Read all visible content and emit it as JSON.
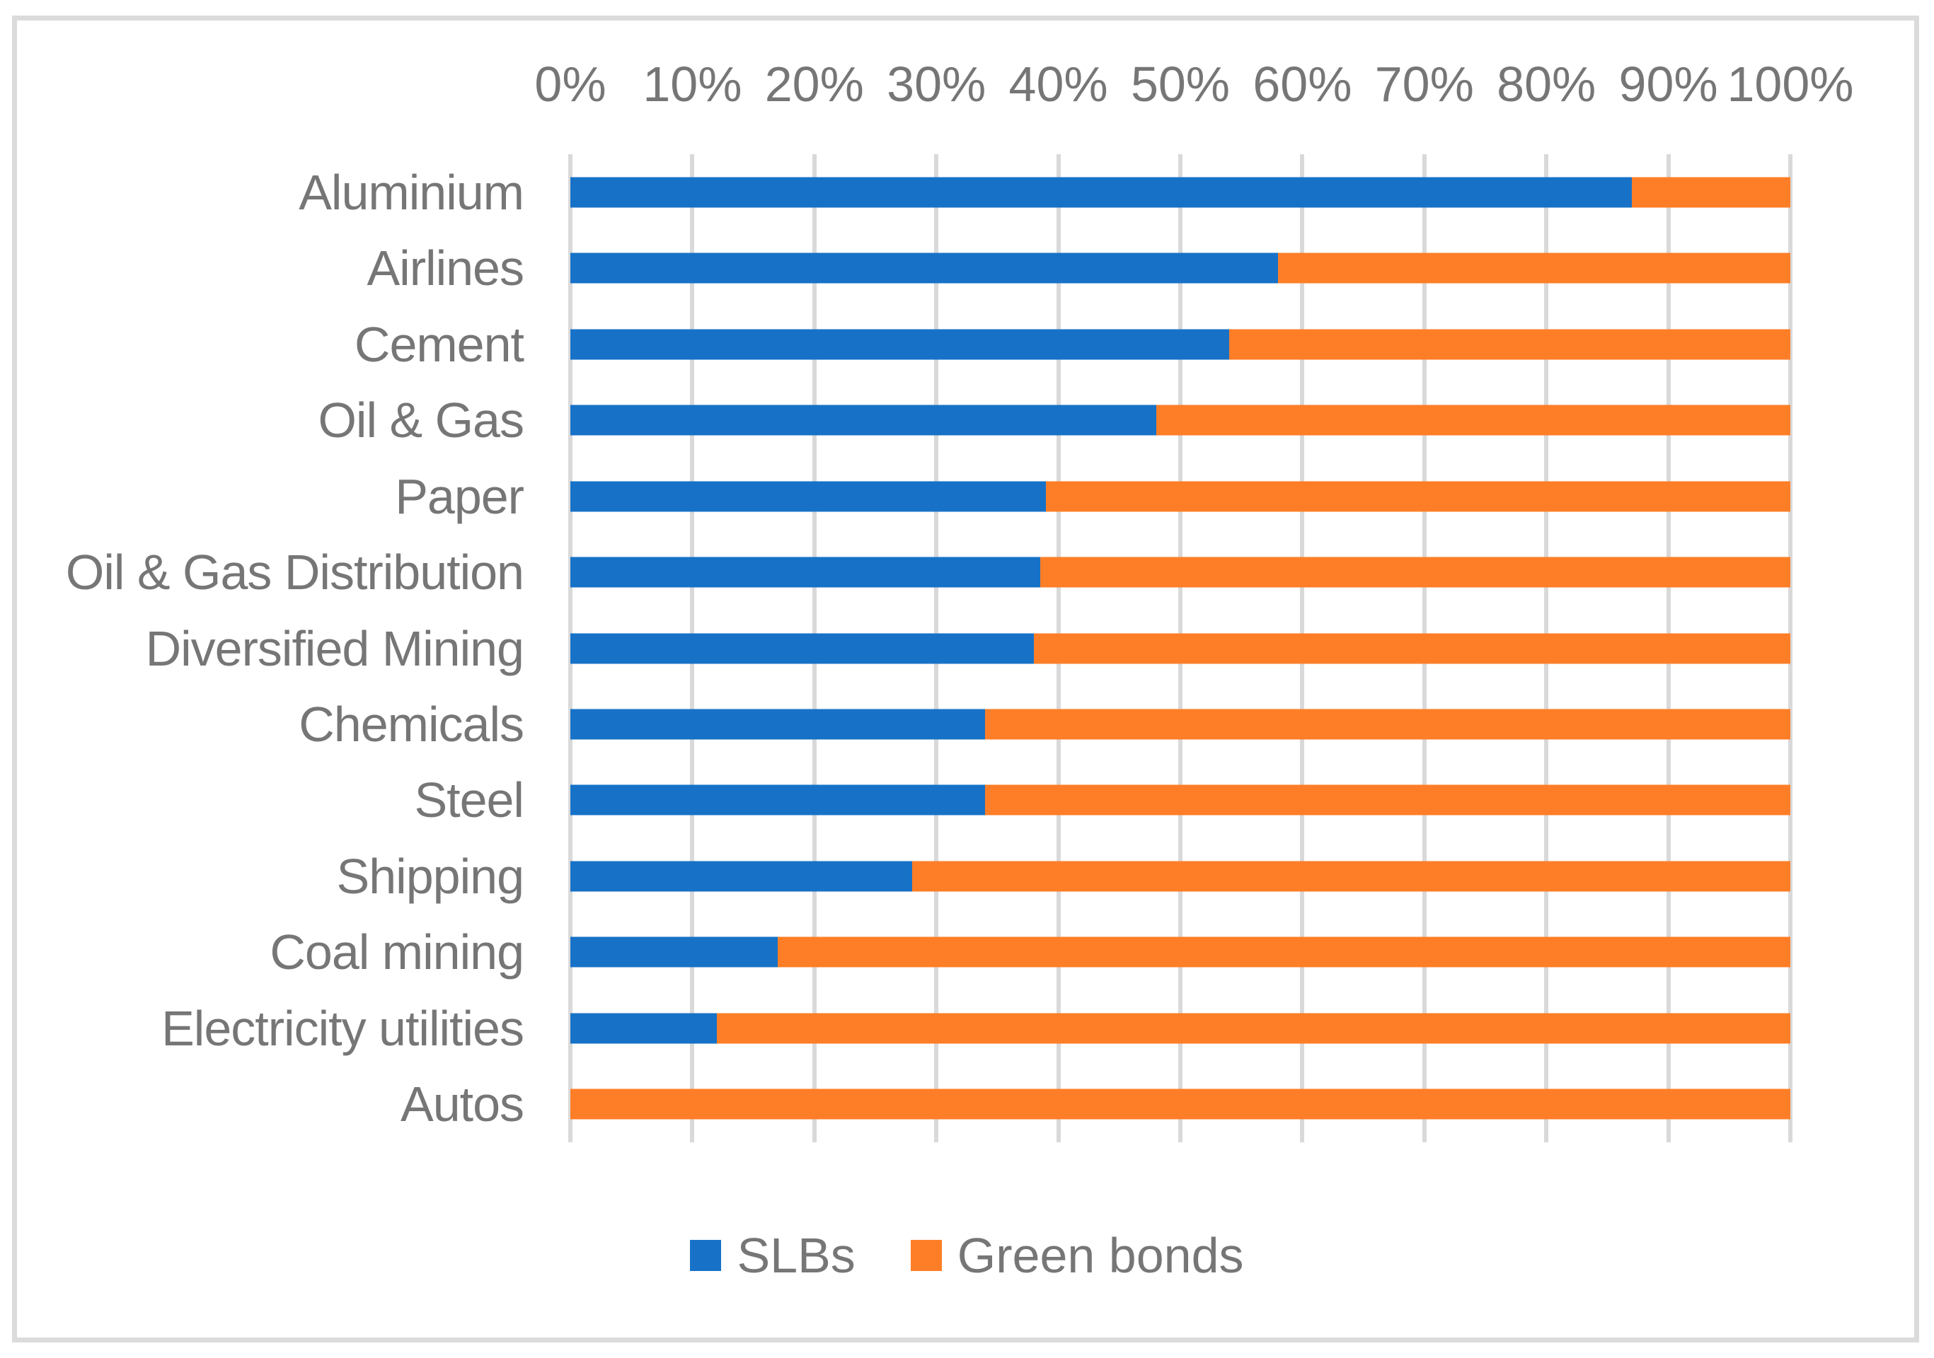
{
  "chart_data": {
    "type": "bar",
    "orientation": "horizontal",
    "stacked": true,
    "title": "",
    "categories": [
      "Aluminium",
      "Airlines",
      "Cement",
      "Oil & Gas",
      "Paper",
      "Oil & Gas Distribution",
      "Diversified Mining",
      "Chemicals",
      "Steel",
      "Shipping",
      "Coal mining",
      "Electricity utilities",
      "Autos"
    ],
    "series": [
      {
        "name": "SLBs",
        "color": "#1772c7",
        "values": [
          87,
          58,
          54,
          48,
          39,
          38.5,
          38,
          34,
          34,
          28,
          17,
          12,
          0
        ]
      },
      {
        "name": "Green bonds",
        "color": "#fe7e27",
        "values": [
          13,
          42,
          46,
          52,
          61,
          61.5,
          62,
          66,
          66,
          72,
          83,
          88,
          100
        ]
      }
    ],
    "x_axis": {
      "position": "top",
      "min": 0,
      "max": 100,
      "tick_step": 10,
      "tick_labels": [
        "0%",
        "10%",
        "20%",
        "30%",
        "40%",
        "50%",
        "60%",
        "70%",
        "80%",
        "90%",
        "100%"
      ]
    },
    "grid": {
      "show_vertical": true,
      "show_horizontal": false,
      "color": "#d9d9d9"
    },
    "legend": {
      "position": "bottom-center"
    }
  },
  "styles": {
    "label_color": "#767676",
    "gridline_color": "#d9d9d9",
    "frame_border_color": "#dbdbdb",
    "background_color": "#ffffff"
  }
}
